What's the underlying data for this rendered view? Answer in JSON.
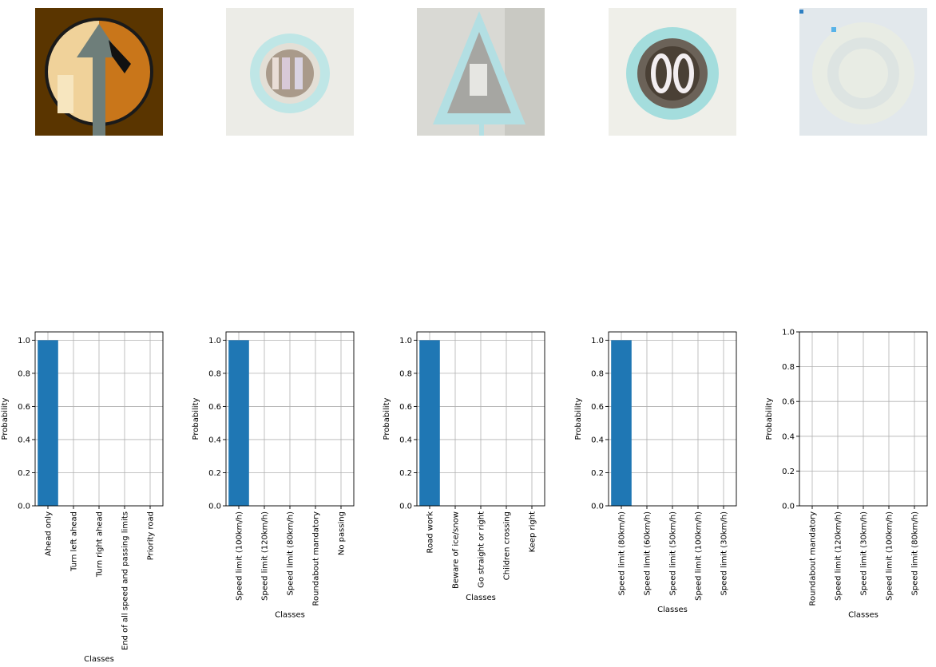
{
  "chart_data": [
    {
      "type": "bar",
      "image": "ahead-only-sign",
      "categories": [
        "Ahead only",
        "Turn left ahead",
        "Turn right ahead",
        "End of all speed and passing limits",
        "Priority road"
      ],
      "values": [
        1.0,
        0.0,
        0.0,
        0.0,
        0.0
      ],
      "xlabel": "Classes",
      "ylabel": "Probability",
      "ylim": [
        0,
        1.05
      ],
      "yticks": [
        "0.0",
        "0.2",
        "0.4",
        "0.6",
        "0.8",
        "1.0"
      ],
      "grid": true
    },
    {
      "type": "bar",
      "image": "speed-limit-100-sign",
      "categories": [
        "Speed limit (100km/h)",
        "Speed limit (120km/h)",
        "Speed limit (80km/h)",
        "Roundabout mandatory",
        "No passing"
      ],
      "values": [
        1.0,
        0.0,
        0.0,
        0.0,
        0.0
      ],
      "xlabel": "Classes",
      "ylabel": "Probability",
      "ylim": [
        0,
        1.05
      ],
      "yticks": [
        "0.0",
        "0.2",
        "0.4",
        "0.6",
        "0.8",
        "1.0"
      ],
      "grid": true
    },
    {
      "type": "bar",
      "image": "road-work-sign",
      "categories": [
        "Road work",
        "Beware of ice/snow",
        "Go straight or right",
        "Children crossing",
        "Keep right"
      ],
      "values": [
        1.0,
        0.0,
        0.0,
        0.0,
        0.0
      ],
      "xlabel": "Classes",
      "ylabel": "Probability",
      "ylim": [
        0,
        1.05
      ],
      "yticks": [
        "0.0",
        "0.2",
        "0.4",
        "0.6",
        "0.8",
        "1.0"
      ],
      "grid": true
    },
    {
      "type": "bar",
      "image": "speed-limit-80-sign",
      "categories": [
        "Speed limit (80km/h)",
        "Speed limit (60km/h)",
        "Speed limit (50km/h)",
        "Speed limit (100km/h)",
        "Speed limit (30km/h)"
      ],
      "values": [
        1.0,
        0.0,
        0.0,
        0.0,
        0.0
      ],
      "xlabel": "Classes",
      "ylabel": "Probability",
      "ylim": [
        0,
        1.05
      ],
      "yticks": [
        "0.0",
        "0.2",
        "0.4",
        "0.6",
        "0.8",
        "1.0"
      ],
      "grid": true
    },
    {
      "type": "bar",
      "image": "roundabout-sign",
      "categories": [
        "Roundabout mandatory",
        "Speed limit (120km/h)",
        "Speed limit (30km/h)",
        "Speed limit (100km/h)",
        "Speed limit (80km/h)"
      ],
      "values": [
        0.0,
        0.0,
        0.0,
        0.0,
        0.0
      ],
      "xlabel": "Classes",
      "ylabel": "Probability",
      "ylim": [
        0,
        1.0
      ],
      "yticks": [
        "0.0",
        "0.2",
        "0.4",
        "0.6",
        "0.8",
        "1.0"
      ],
      "grid": true
    }
  ],
  "colors": {
    "bar": "#1f77b4",
    "grid": "#b0b0b0",
    "axis": "#000000"
  }
}
